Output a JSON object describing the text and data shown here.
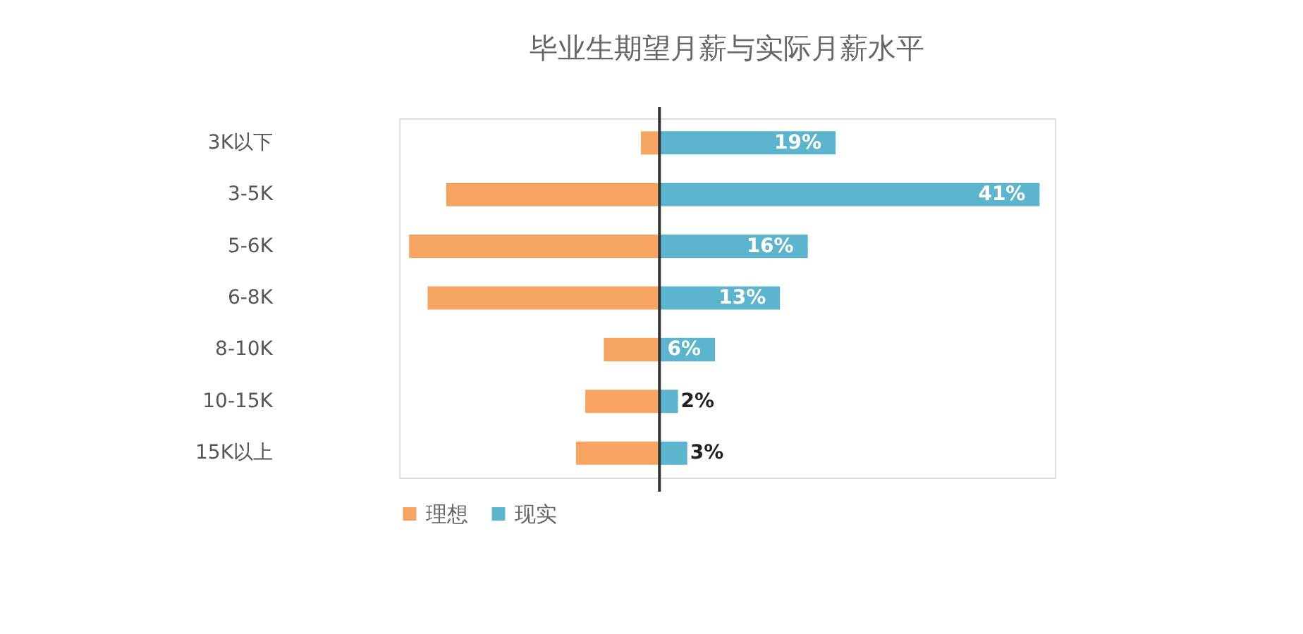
{
  "chart_data": {
    "type": "bar",
    "orientation": "horizontal",
    "stacked": true,
    "title": "毕业生期望月薪与实际月薪水平",
    "categories": [
      "3K以下",
      "3-5K",
      "5-6K",
      "6-8K",
      "8-10K",
      "10-15K",
      "15K以上"
    ],
    "series": [
      {
        "name": "理想",
        "color": "#f5a462",
        "values": [
          -2,
          -23,
          -27,
          -25,
          -6,
          -8,
          -9
        ]
      },
      {
        "name": "现实",
        "color": "#5db4cd",
        "values": [
          19,
          41,
          16,
          13,
          6,
          2,
          3
        ],
        "value_labels": [
          "19%",
          "41%",
          "16%",
          "13%",
          "6%",
          "2%",
          "3%"
        ]
      }
    ],
    "legend": "bottom",
    "grid": false
  }
}
